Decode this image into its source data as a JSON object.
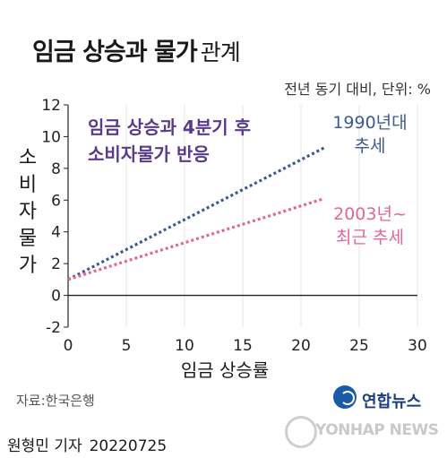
{
  "title": {
    "bold": "임금 상승과 물가",
    "light": "관계"
  },
  "unit": "전년 동기 대비, 단위: %",
  "source": "자료:한국은행",
  "byline": {
    "author": "원형민 기자",
    "date": "20220725"
  },
  "logo": {
    "name": "연합뉴스",
    "watermark": "YONHAP NEWS"
  },
  "colors": {
    "series_1990": "#3d5a8c",
    "series_2003": "#e0679a",
    "note": "#5b3a8c",
    "axis": "#222222",
    "grid": "#e6e6e6"
  },
  "chart_data": {
    "type": "line",
    "title": "",
    "annotation": "임금 상승과 4분기 후\n소비자물가 반응",
    "xlabel": "임금 상승률",
    "ylabel": "소비자물가",
    "xlim": [
      0,
      30
    ],
    "ylim": [
      -2,
      12
    ],
    "x_ticks": [
      "0",
      "5",
      "10",
      "15",
      "20",
      "25",
      "30"
    ],
    "y_ticks": [
      "-2",
      "0",
      "2",
      "4",
      "6",
      "8",
      "10",
      "12"
    ],
    "grid": "vertical",
    "series": [
      {
        "name": "1990년대\n추세",
        "style": "dotted",
        "x": [
          0,
          22
        ],
        "values": [
          1.0,
          9.3
        ]
      },
      {
        "name": "2003년~\n최근 추세",
        "style": "dotted",
        "x": [
          0,
          22
        ],
        "values": [
          1.0,
          6.1
        ]
      }
    ]
  }
}
